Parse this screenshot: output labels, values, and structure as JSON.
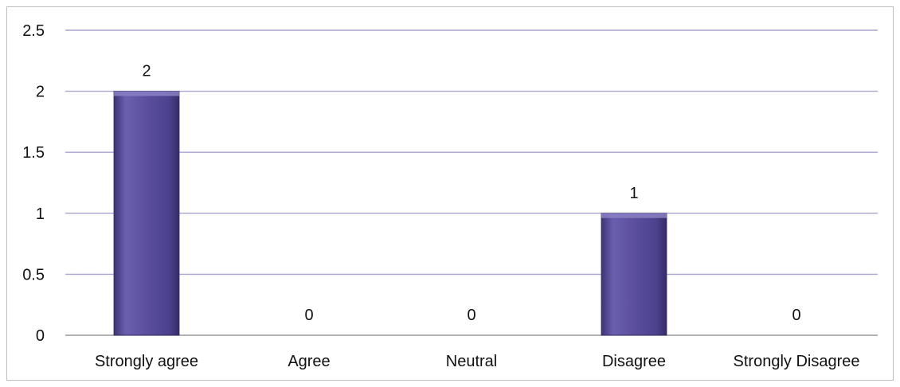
{
  "chart_data": {
    "type": "bar",
    "title": "",
    "xlabel": "",
    "ylabel": "",
    "categories": [
      "Strongly agree",
      "Agree",
      "Neutral",
      "Disagree",
      "Strongly Disagree"
    ],
    "values": [
      2,
      0,
      0,
      1,
      0
    ],
    "data_labels": [
      "2",
      "0",
      "0",
      "1",
      "0"
    ],
    "ylim": [
      0,
      2.5
    ],
    "yticks": [
      0,
      0.5,
      1,
      1.5,
      2,
      2.5
    ],
    "ytick_labels": [
      "0",
      "0.5",
      "1",
      "1.5",
      "2",
      "2.5"
    ],
    "grid": true,
    "legend": "none",
    "colors": {
      "bar": "#5b4f9e",
      "bar_light": "#8a80c4",
      "bar_dark": "#3e3476",
      "grid": "#a9a3cf",
      "axis": "#9a9a9a"
    }
  }
}
